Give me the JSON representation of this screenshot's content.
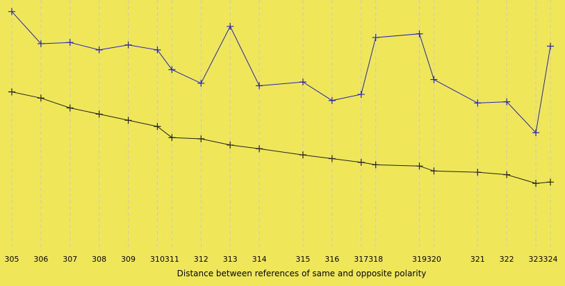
{
  "chart_data": {
    "type": "line",
    "title": "",
    "xlabel": "Distance between references of same and opposite polarity",
    "ylabel": "",
    "grid": {
      "vertical": true,
      "horizontal": false
    },
    "legend": "none",
    "colors": {
      "background": "#f0e65a",
      "upper_series": "#2020c0",
      "lower_series": "#202020",
      "grid": "#c8c8c8"
    },
    "x": [
      "305",
      "306",
      "307",
      "308",
      "309",
      "310",
      "311",
      "312",
      "313",
      "314",
      "315",
      "316",
      "317",
      "318",
      "319",
      "320",
      "321",
      "322",
      "323",
      "324"
    ],
    "x_positions": [
      305,
      306,
      307,
      308,
      309,
      310,
      310.5,
      311.5,
      312.5,
      313.5,
      315,
      316,
      317,
      317.5,
      319,
      319.5,
      321,
      322,
      323,
      323.5
    ],
    "ylim": [
      0,
      100
    ],
    "series": [
      {
        "values": [
          97,
          84,
          84.5,
          81.5,
          83.5,
          81.5,
          73.5,
          68,
          91,
          67,
          68.5,
          61,
          63.5,
          86.5,
          88,
          69.5,
          60,
          60.5,
          48,
          83
        ]
      },
      {
        "values": [
          64.5,
          62,
          58,
          55.5,
          53,
          50.5,
          46,
          45.5,
          43,
          41.5,
          39,
          37.5,
          36,
          35,
          34.5,
          32.5,
          32,
          31,
          27.5,
          28
        ]
      }
    ]
  }
}
